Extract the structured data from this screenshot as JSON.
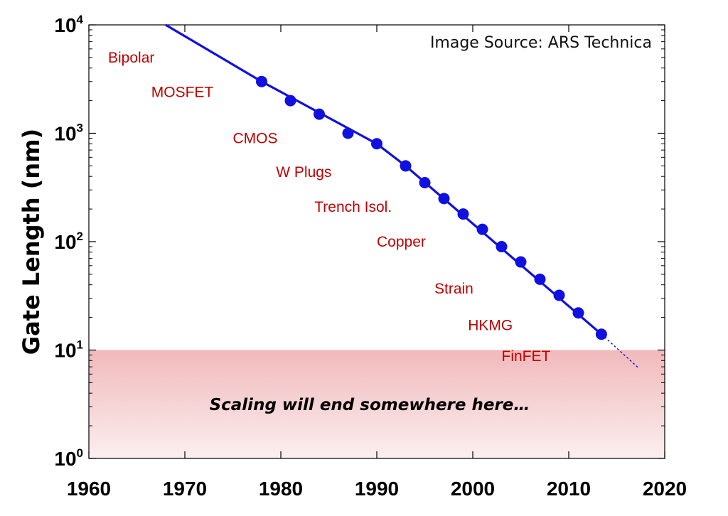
{
  "chart_data": {
    "type": "scatter",
    "title": "",
    "xlabel": "",
    "ylabel": "Gate Length (nm)",
    "xlim": [
      1960,
      2020
    ],
    "ylim": [
      1,
      10000
    ],
    "yscale": "log",
    "x_ticks": [
      "1960",
      "1970",
      "1980",
      "1990",
      "2000",
      "2010",
      "2020"
    ],
    "y_ticks": [
      {
        "base": "10",
        "exp": "0"
      },
      {
        "base": "10",
        "exp": "1"
      },
      {
        "base": "10",
        "exp": "2"
      },
      {
        "base": "10",
        "exp": "3"
      },
      {
        "base": "10",
        "exp": "4"
      }
    ],
    "grid": false,
    "series": [
      {
        "color": "#1010e0",
        "points": [
          {
            "x": 1978,
            "y": 3000
          },
          {
            "x": 1981,
            "y": 2000
          },
          {
            "x": 1984,
            "y": 1500
          },
          {
            "x": 1987,
            "y": 1000
          },
          {
            "x": 1990,
            "y": 800
          },
          {
            "x": 1993,
            "y": 500
          },
          {
            "x": 1995,
            "y": 350
          },
          {
            "x": 1997,
            "y": 250
          },
          {
            "x": 1999,
            "y": 180
          },
          {
            "x": 2001,
            "y": 130
          },
          {
            "x": 2003,
            "y": 90
          },
          {
            "x": 2005,
            "y": 65
          },
          {
            "x": 2007,
            "y": 45
          },
          {
            "x": 2009,
            "y": 32
          },
          {
            "x": 2011,
            "y": 22
          },
          {
            "x": 2013.4,
            "y": 14
          }
        ],
        "trend_line": [
          {
            "x": 1968,
            "y": 10000
          },
          {
            "x": 1978,
            "y": 3000
          },
          {
            "x": 1990,
            "y": 800
          },
          {
            "x": 1993,
            "y": 500
          },
          {
            "x": 2013.4,
            "y": 14
          }
        ],
        "extrapolation": [
          {
            "x": 2013.4,
            "y": 14
          },
          {
            "x": 2017.3,
            "y": 6.8
          }
        ]
      }
    ],
    "annotations": [
      {
        "text": "Bipolar",
        "x": 1962,
        "y": 5000
      },
      {
        "text": "MOSFET",
        "x": 1966.5,
        "y": 2400
      },
      {
        "text": "CMOS",
        "x": 1975,
        "y": 900
      },
      {
        "text": "W Plugs",
        "x": 1979.5,
        "y": 440
      },
      {
        "text": "Trench Isol.",
        "x": 1983.5,
        "y": 210
      },
      {
        "text": "Copper",
        "x": 1990,
        "y": 100
      },
      {
        "text": "Strain",
        "x": 1996,
        "y": 37
      },
      {
        "text": "HKMG",
        "x": 1999.5,
        "y": 17
      },
      {
        "text": "FinFET",
        "x": 2003,
        "y": 8.8
      }
    ],
    "source_note": "Image Source: ARS Technica",
    "shaded_region": {
      "y_from": 1,
      "y_to": 10,
      "label": "Scaling will end somewhere here…",
      "color": "#f1b9bb"
    }
  }
}
